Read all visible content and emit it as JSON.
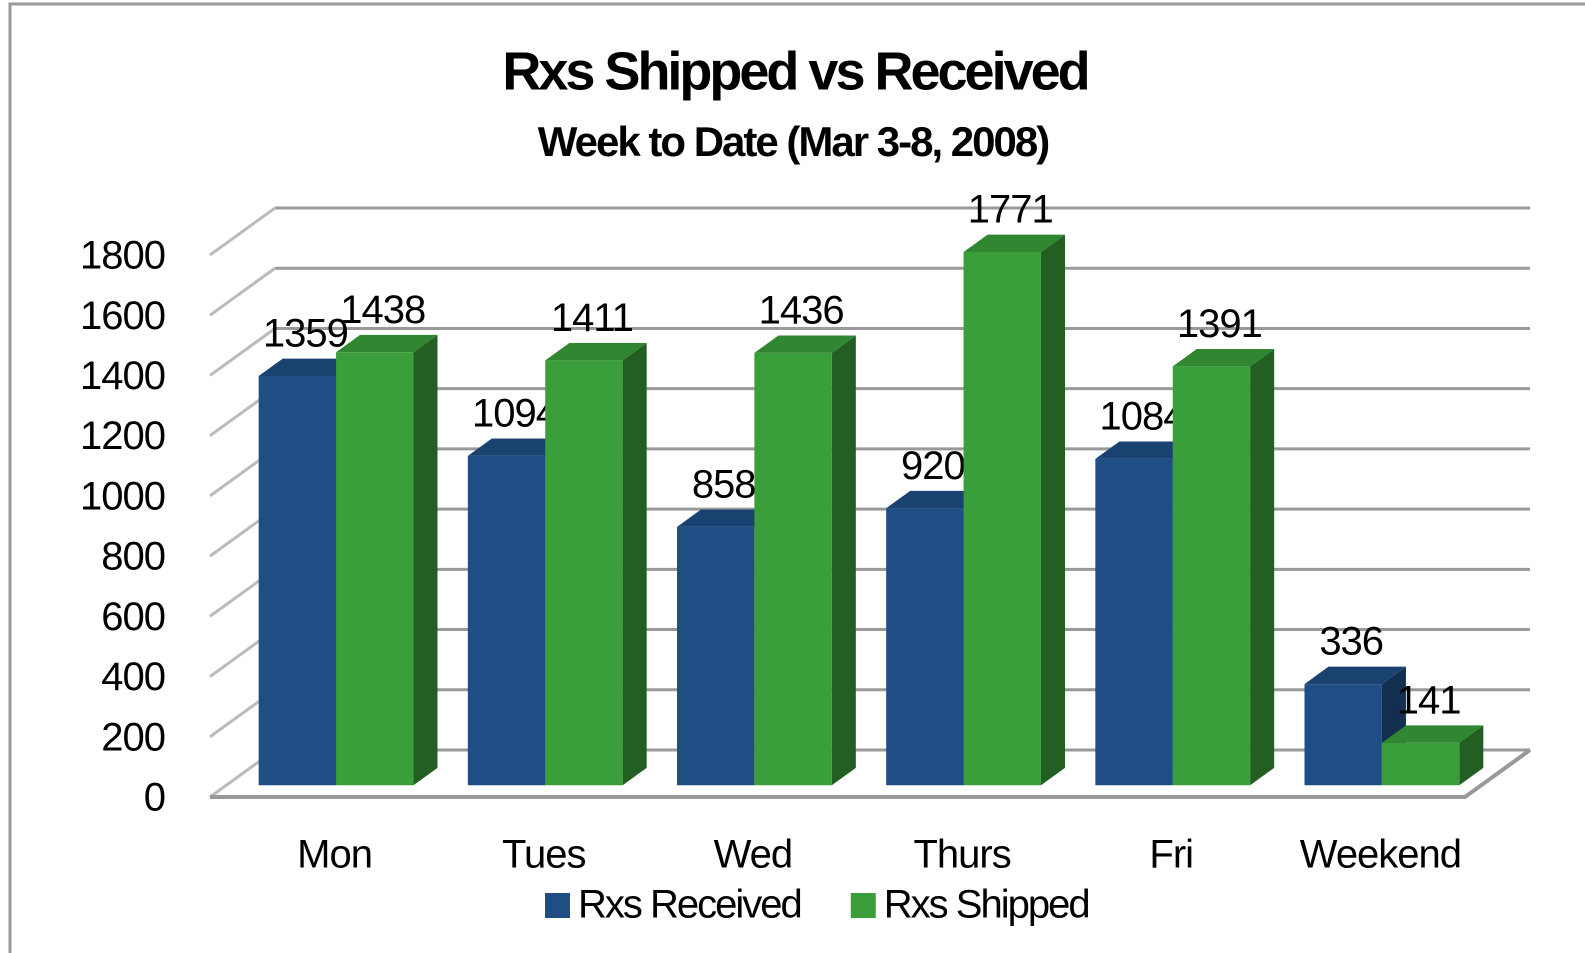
{
  "chart_data": {
    "type": "bar3d",
    "title": "Rxs Shipped vs Received",
    "subtitle": "Week to Date (Mar 3-8, 2008)",
    "categories": [
      "Mon",
      "Tues",
      "Wed",
      "Thurs",
      "Fri",
      "Weekend"
    ],
    "series": [
      {
        "name": "Rxs Received",
        "color": "#1f4e85",
        "values": [
          1359,
          1094,
          858,
          920,
          1084,
          336
        ]
      },
      {
        "name": "Rxs Shipped",
        "color": "#3a9e3a",
        "values": [
          1438,
          1411,
          1436,
          1771,
          1391,
          141
        ]
      }
    ],
    "ylim": [
      0,
      1800
    ],
    "yticks": [
      0,
      200,
      400,
      600,
      800,
      1000,
      1200,
      1400,
      1600,
      1800
    ],
    "grid": true,
    "legend": "bottom"
  }
}
